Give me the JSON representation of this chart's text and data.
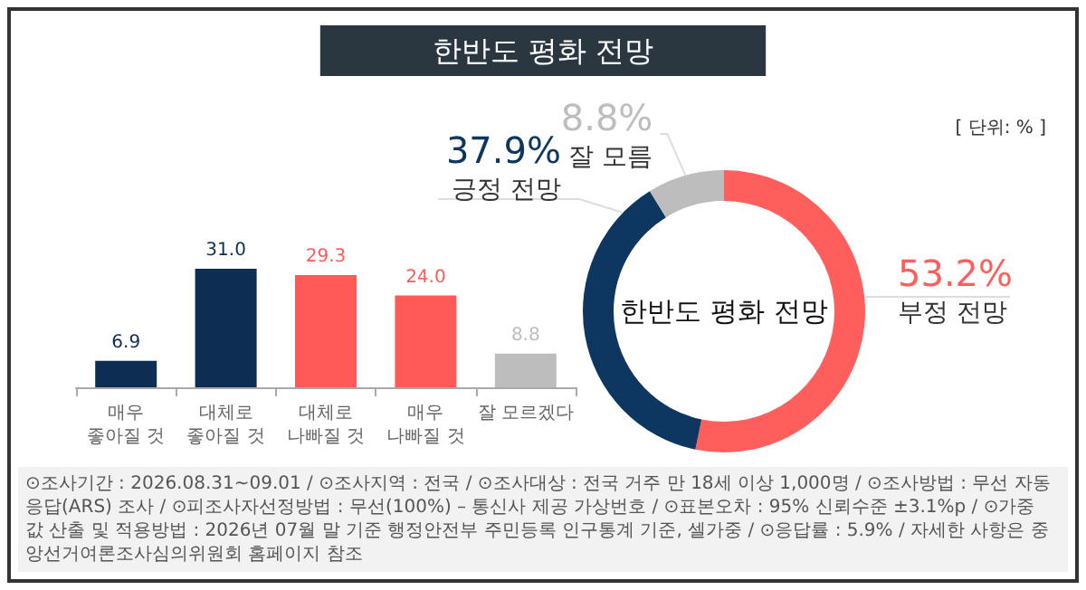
{
  "chart_data": [
    {
      "type": "bar",
      "title": "한반도 평화 전망",
      "categories": [
        "매우 좋아질 것",
        "대체로 좋아질 것",
        "대체로 나빠질 것",
        "매우 나빠질 것",
        "잘 모르겠다"
      ],
      "values": [
        6.9,
        31.0,
        29.3,
        24.0,
        8.8
      ],
      "colors": [
        "#0d2d52",
        "#0d2d52",
        "#ff5a57",
        "#ff5a57",
        "#bdbdbd"
      ],
      "value_labels": [
        "6.9",
        "31.0",
        "29.3",
        "24.0",
        "8.8"
      ],
      "annotations": [
        "[ 단위: % ]",
        "⊙조사기간 : 2026.08.31~09.01 / ⊙조사지역 : 전국 / ⊙조사대상 : 전국 거주 만 18세 이상 1,000명 / ⊙조사방법 : 무선 자동응답(ARS) 조사 / ⊙피조사자선정방법 : 무선(100%) – 통신사 제공 가상번호 / ⊙표본오차 : 95% 신뢰수준 ±3.1%p / ⊙가중값 산출 및 적용방법 : 2026년 07월 말 기준 행정안전부 주민등록 인구통계 기준, 셀가중 / ⊙응답률 : 5.9% / 자세한 사항은 중앙선거여론조사심의위원회 홈페이지 참조"
      ]
    },
    {
      "type": "donut",
      "categories": [
        "부정 전망",
        "긍정 전망",
        "잘 모름"
      ],
      "values": [
        53.2,
        37.9,
        8.8
      ],
      "colors": [
        "#ff5f5c",
        "#0d3761",
        "#bdbdbd"
      ],
      "value_labels": [
        "53.2%",
        "37.9%",
        "8.8%"
      ],
      "annotations": [
        "한반도 평화 전망"
      ]
    }
  ]
}
